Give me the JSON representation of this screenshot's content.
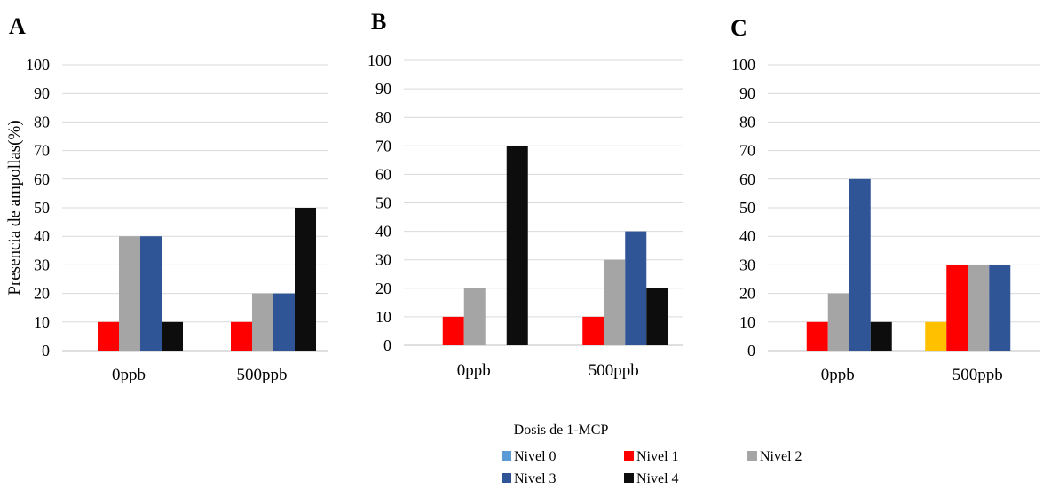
{
  "chart_data": [
    {
      "type": "bar",
      "panel": "A",
      "categories": [
        "0ppb",
        "500ppb"
      ],
      "ylabel": "Presencia de ampollas(%)",
      "ylim": [
        0,
        100
      ],
      "yticks": [
        0,
        10,
        20,
        30,
        40,
        50,
        60,
        70,
        80,
        90,
        100
      ],
      "series": [
        {
          "name": "Nivel 0",
          "color": "#5b9bd5",
          "values": [
            0,
            0
          ]
        },
        {
          "name": "Nivel 1",
          "color": "#ff0000",
          "values": [
            10,
            10
          ]
        },
        {
          "name": "Nivel 2",
          "color": "#a5a5a5",
          "values": [
            40,
            20
          ]
        },
        {
          "name": "Nivel 3",
          "color": "#2f5597",
          "values": [
            40,
            20
          ]
        },
        {
          "name": "Nivel 4",
          "color": "#0d0d0d",
          "values": [
            10,
            50
          ]
        }
      ]
    },
    {
      "type": "bar",
      "panel": "B",
      "categories": [
        "0ppb",
        "500ppb"
      ],
      "ylim": [
        0,
        100
      ],
      "yticks": [
        0,
        10,
        20,
        30,
        40,
        50,
        60,
        70,
        80,
        90,
        100
      ],
      "series": [
        {
          "name": "Nivel 0",
          "color": "#5b9bd5",
          "values": [
            0,
            0
          ]
        },
        {
          "name": "Nivel 1",
          "color": "#ff0000",
          "values": [
            10,
            10
          ]
        },
        {
          "name": "Nivel 2",
          "color": "#a5a5a5",
          "values": [
            20,
            30
          ]
        },
        {
          "name": "Nivel 3",
          "color": "#2f5597",
          "values": [
            0,
            40
          ]
        },
        {
          "name": "Nivel 4",
          "color": "#0d0d0d",
          "values": [
            70,
            20
          ]
        }
      ]
    },
    {
      "type": "bar",
      "panel": "C",
      "categories": [
        "0ppb",
        "500ppb"
      ],
      "ylim": [
        0,
        100
      ],
      "yticks": [
        0,
        10,
        20,
        30,
        40,
        50,
        60,
        70,
        80,
        90,
        100
      ],
      "series": [
        {
          "name": "Nivel 0",
          "color": "#ffc000",
          "values": [
            0,
            10
          ]
        },
        {
          "name": "Nivel 1",
          "color": "#ff0000",
          "values": [
            10,
            30
          ]
        },
        {
          "name": "Nivel 2",
          "color": "#a5a5a5",
          "values": [
            20,
            30
          ]
        },
        {
          "name": "Nivel 3",
          "color": "#2f5597",
          "values": [
            60,
            30
          ]
        },
        {
          "name": "Nivel 4",
          "color": "#0d0d0d",
          "values": [
            10,
            0
          ]
        }
      ]
    }
  ],
  "xlabel": "Dosis de 1-MCP",
  "legend": {
    "placement": "bottom-center",
    "entries": [
      {
        "name": "Nivel 0",
        "color": "#5b9bd5"
      },
      {
        "name": "Nivel 1",
        "color": "#ff0000"
      },
      {
        "name": "Nivel 2",
        "color": "#a5a5a5"
      },
      {
        "name": "Nivel 3",
        "color": "#2f5597"
      },
      {
        "name": "Nivel 4",
        "color": "#0d0d0d"
      }
    ]
  },
  "grid": true
}
